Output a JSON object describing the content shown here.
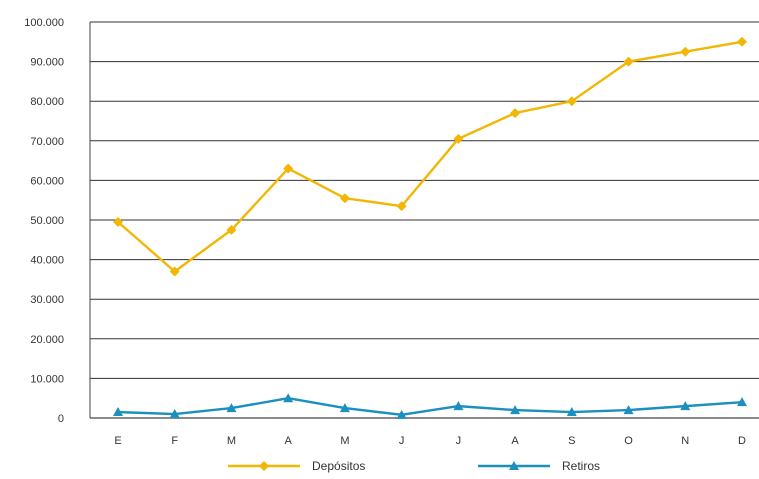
{
  "chart_data": {
    "type": "line",
    "categories": [
      "E",
      "F",
      "M",
      "A",
      "M",
      "J",
      "J",
      "A",
      "S",
      "O",
      "N",
      "D"
    ],
    "series": [
      {
        "name": "Depósitos",
        "color": "#f2b705",
        "marker": "diamond",
        "values": [
          49500,
          37000,
          47500,
          63000,
          55500,
          53500,
          70500,
          77000,
          80000,
          90000,
          92500,
          95000
        ]
      },
      {
        "name": "Retiros",
        "color": "#1b8fbe",
        "marker": "triangle",
        "values": [
          1500,
          1000,
          2500,
          5000,
          2500,
          800,
          3000,
          2000,
          1500,
          2000,
          3000,
          4000
        ]
      }
    ],
    "yticks": [
      "0",
      "10.000",
      "20.000",
      "30.000",
      "40.000",
      "50.000",
      "60.000",
      "70.000",
      "80.000",
      "90.000",
      "100.000"
    ],
    "ylim": [
      0,
      100000
    ],
    "grid": true,
    "legend": "bottom"
  }
}
